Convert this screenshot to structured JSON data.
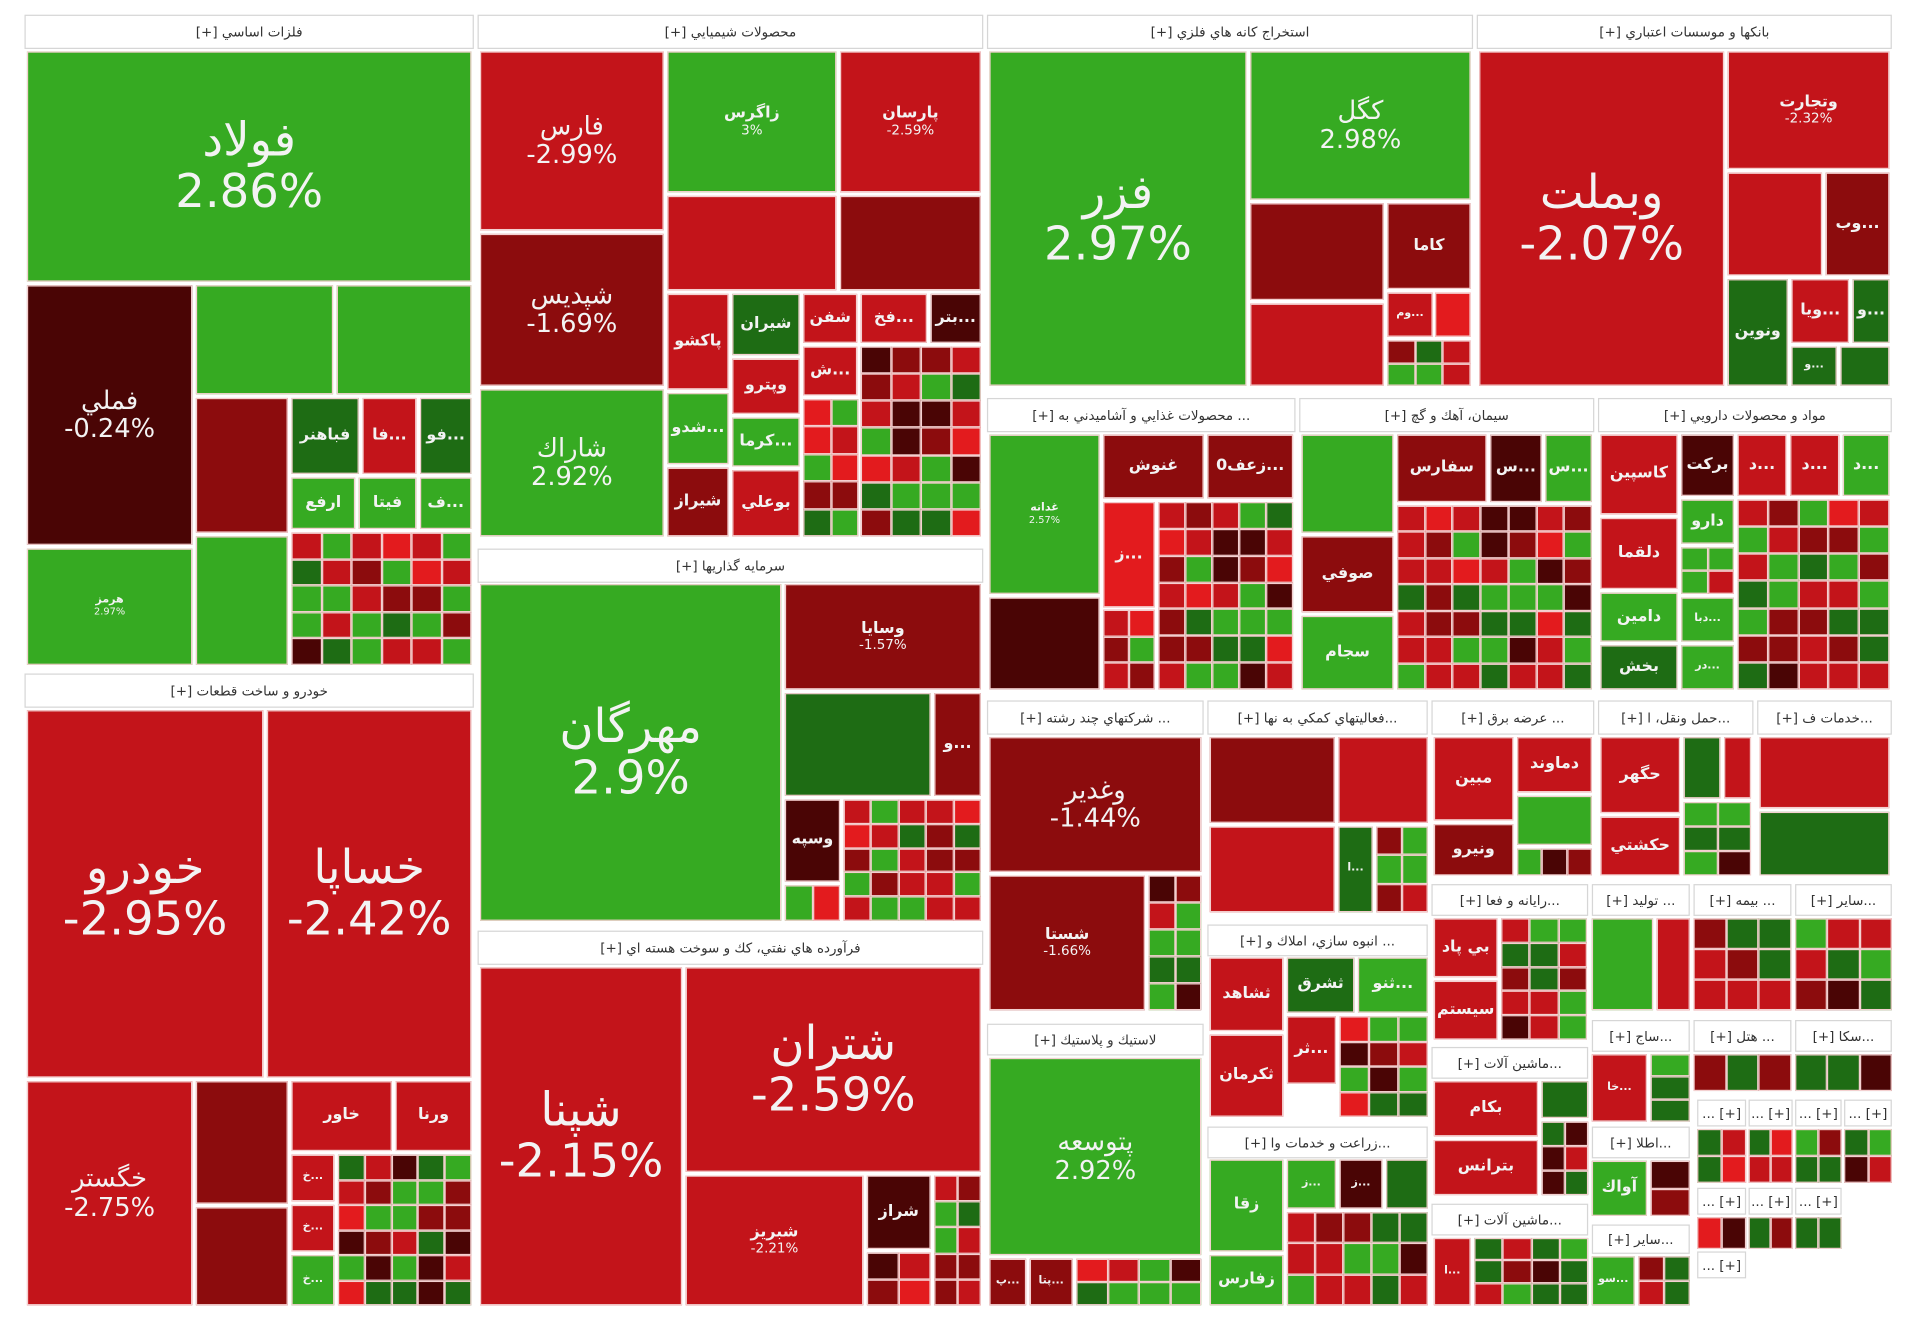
{
  "colors": {
    "G": "#36aa22",
    "g": "#1e6c14",
    "R": "#c3141a",
    "D": "#8c0c0d",
    "M": "#4a0505",
    "B": "#e31b1e"
  },
  "small_header_label": "[+] ...",
  "sectors": [
    {
      "title": "فلزات اساسي [+]",
      "tiles": [
        {
          "symbol": "فولاد",
          "change": "2.86%"
        },
        {
          "symbol": "فملي",
          "change": "-0.24%"
        },
        {
          "symbol": "هرمز",
          "change": "2.97%"
        },
        {
          "symbol": "فباهنر"
        },
        {
          "symbol": "...فا"
        },
        {
          "symbol": "...فو"
        },
        {
          "symbol": "ارفع"
        },
        {
          "symbol": "فيتا"
        },
        {
          "symbol": "...ف"
        }
      ]
    },
    {
      "title": "محصولات شيميايي [+]",
      "tiles": [
        {
          "symbol": "فارس",
          "change": "-2.99%"
        },
        {
          "symbol": "شپديس",
          "change": "-1.69%"
        },
        {
          "symbol": "شاراك",
          "change": "2.92%"
        },
        {
          "symbol": "زاگرس",
          "change": "3%"
        },
        {
          "symbol": "پارسان",
          "change": "-2.59%"
        },
        {
          "symbol": "پاكشو"
        },
        {
          "symbol": "شيران"
        },
        {
          "symbol": "وپترو"
        },
        {
          "symbol": "شفن"
        },
        {
          "symbol": "...فخ"
        },
        {
          "symbol": "...بتر"
        },
        {
          "symbol": "...ش"
        },
        {
          "symbol": "...شدو"
        },
        {
          "symbol": "...كرما"
        },
        {
          "symbol": "شيراز"
        },
        {
          "symbol": "بوعلي"
        }
      ]
    },
    {
      "title": "استخراج كانه هاي فلزي [+]",
      "tiles": [
        {
          "symbol": "فزر",
          "change": "2.97%"
        },
        {
          "symbol": "كگل",
          "change": "2.98%"
        },
        {
          "symbol": "كاما"
        },
        {
          "symbol": "...وم"
        }
      ]
    },
    {
      "title": "بانكها و موسسات اعتباري [+]",
      "tiles": [
        {
          "symbol": "وبملت",
          "change": "-2.07%"
        },
        {
          "symbol": "وتجارت",
          "change": "-2.32%"
        },
        {
          "symbol": "...وب"
        },
        {
          "symbol": "ونوين"
        },
        {
          "symbol": "...ويا"
        },
        {
          "symbol": "...و"
        },
        {
          "symbol": "...و"
        }
      ]
    },
    {
      "title": "... محصولات غذايي و آشاميدني به [+]",
      "tiles": [
        {
          "symbol": "غدانه",
          "change": "2.57%"
        },
        {
          "symbol": "غنوش"
        },
        {
          "symbol": "...زعف0"
        },
        {
          "symbol": "...ز"
        }
      ]
    },
    {
      "title": "سيمان، آهك و گچ [+]",
      "tiles": [
        {
          "symbol": "سفارس"
        },
        {
          "symbol": "...س"
        },
        {
          "symbol": "...س"
        },
        {
          "symbol": "صوفي"
        },
        {
          "symbol": "سجام"
        }
      ]
    },
    {
      "title": "مواد و محصولات دارويي [+]",
      "tiles": [
        {
          "symbol": "كاسپين"
        },
        {
          "symbol": "بركت"
        },
        {
          "symbol": "...د"
        },
        {
          "symbol": "...د"
        },
        {
          "symbol": "...د"
        },
        {
          "symbol": "دارو"
        },
        {
          "symbol": "دلقما"
        },
        {
          "symbol": "دامين"
        },
        {
          "symbol": "...دبا"
        },
        {
          "symbol": "بخش"
        },
        {
          "symbol": "...در"
        }
      ]
    },
    {
      "title": "سرمايه گذاريها [+]",
      "tiles": [
        {
          "symbol": "مهرگان",
          "change": "2.9%"
        },
        {
          "symbol": "وسايا",
          "change": "-1.57%"
        },
        {
          "symbol": "...و"
        },
        {
          "symbol": "وسپه"
        }
      ]
    },
    {
      "title": "خودرو و ساخت قطعات [+]",
      "tiles": [
        {
          "symbol": "خودرو",
          "change": "-2.95%"
        },
        {
          "symbol": "خساپا",
          "change": "-2.42%"
        },
        {
          "symbol": "خگستر",
          "change": "-2.75%"
        },
        {
          "symbol": "خاور"
        },
        {
          "symbol": "ورنا"
        },
        {
          "symbol": "...خ"
        },
        {
          "symbol": "...خ"
        },
        {
          "symbol": "...خ"
        }
      ]
    },
    {
      "title": "فرآورده هاي نفتي، كك و سوخت هسته اي [+]",
      "tiles": [
        {
          "symbol": "شپنا",
          "change": "-2.15%"
        },
        {
          "symbol": "شتران",
          "change": "-2.59%"
        },
        {
          "symbol": "شبريز",
          "change": "-2.21%"
        },
        {
          "symbol": "شراز"
        }
      ]
    },
    {
      "title": "... شركتهاي چند رشته [+]",
      "tiles": [
        {
          "symbol": "وغدير",
          "change": "-1.44%"
        },
        {
          "symbol": "شستا",
          "change": "-1.66%"
        }
      ]
    },
    {
      "title": "لاستيك و پلاستيك [+]",
      "tiles": [
        {
          "symbol": "پتوسعه",
          "change": "2.92%"
        },
        {
          "symbol": "...پ"
        },
        {
          "symbol": "...پتا"
        }
      ]
    },
    {
      "title": "...فعاليتهاي كمكي به نها [+]",
      "tiles": [
        {
          "symbol": "...ا"
        }
      ]
    },
    {
      "title": "... انبوه سازي، املاك و [+]",
      "tiles": [
        {
          "symbol": "ثشاهد"
        },
        {
          "symbol": "ثشرق"
        },
        {
          "symbol": "...ثنو"
        },
        {
          "symbol": "...ثر"
        },
        {
          "symbol": "ثكرمان"
        }
      ]
    },
    {
      "title": "...زراعت و خدمات وا [+]",
      "tiles": [
        {
          "symbol": "زقا"
        },
        {
          "symbol": "زفارس"
        },
        {
          "symbol": "...ز"
        },
        {
          "symbol": "...ز"
        }
      ]
    },
    {
      "title": "... عرضه برق [+]",
      "tiles": [
        {
          "symbol": "مبين"
        },
        {
          "symbol": "دماوند"
        },
        {
          "symbol": "ونيرو"
        }
      ]
    },
    {
      "title": "...حمل ونقل، ا [+]",
      "tiles": [
        {
          "symbol": "حگهر"
        },
        {
          "symbol": "حكشتي"
        }
      ]
    },
    {
      "title": "...خدمات ف [+]",
      "tiles": []
    },
    {
      "title": "...رايانه و فعا [+]",
      "tiles": [
        {
          "symbol": "بي پاد"
        },
        {
          "symbol": "سيستم"
        }
      ]
    },
    {
      "title": "... توليد [+]",
      "tiles": []
    },
    {
      "title": "... بيمه [+]",
      "tiles": []
    },
    {
      "title": "...ساير [+]",
      "tiles": []
    },
    {
      "title": "...ماشين آلات [+]",
      "tiles": [
        {
          "symbol": "بكام"
        },
        {
          "symbol": "بترانس"
        }
      ]
    },
    {
      "title": "...ماشين آلات [+]",
      "tiles": [
        {
          "symbol": "...ا"
        }
      ]
    },
    {
      "title": "...ساج [+]",
      "tiles": [
        {
          "symbol": "...خا"
        }
      ]
    },
    {
      "title": "... هتل [+]",
      "tiles": []
    },
    {
      "title": "...سكا [+]",
      "tiles": []
    },
    {
      "title": "...اطلا [+]",
      "tiles": [
        {
          "symbol": "آواك"
        }
      ]
    },
    {
      "title": "...ساير [+]",
      "tiles": [
        {
          "symbol": "...سو"
        }
      ]
    }
  ]
}
